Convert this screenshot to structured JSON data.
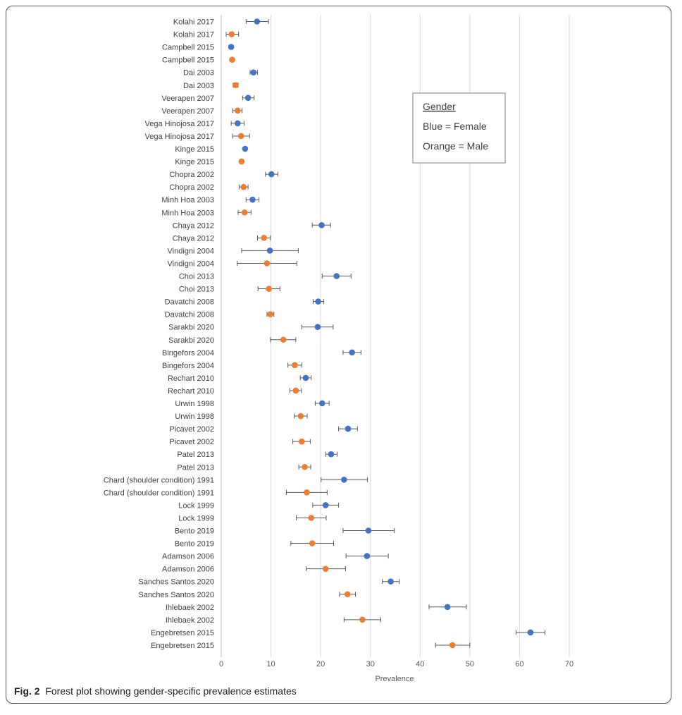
{
  "caption": {
    "label": "Fig. 2",
    "text": "Forest plot showing gender-specific prevalence estimates"
  },
  "colors": {
    "female": "#4472c4",
    "male": "#ed7d31",
    "grid": "#d9d9d9",
    "whisker": "#595959"
  },
  "chart_data": {
    "type": "scatter",
    "subtype": "forest",
    "title": "",
    "xlabel": "Prevalence",
    "ylabel": "",
    "xlim": [
      0,
      70
    ],
    "xticks": [
      0,
      10,
      20,
      30,
      40,
      50,
      60,
      70
    ],
    "grid": true,
    "legend": {
      "position": "top-right",
      "title": "Gender",
      "entries": [
        "Blue = Female",
        "Orange = Male"
      ]
    },
    "series": [
      {
        "name": "Female",
        "color": "blue"
      },
      {
        "name": "Male",
        "color": "orange"
      }
    ],
    "rows": [
      {
        "label": "Kolahi 2017",
        "gender": "F",
        "est": 7.2,
        "lo": 5.0,
        "hi": 9.5
      },
      {
        "label": "Kolahi 2017",
        "gender": "M",
        "est": 2.1,
        "lo": 1.0,
        "hi": 3.5
      },
      {
        "label": "Campbell 2015",
        "gender": "F",
        "est": 2.0,
        "lo": 2.0,
        "hi": 2.0
      },
      {
        "label": "Campbell 2015",
        "gender": "M",
        "est": 2.2,
        "lo": 2.2,
        "hi": 2.2
      },
      {
        "label": "Dai 2003",
        "gender": "F",
        "est": 6.5,
        "lo": 5.8,
        "hi": 7.3
      },
      {
        "label": "Dai 2003",
        "gender": "M",
        "est": 2.9,
        "lo": 2.4,
        "hi": 3.4
      },
      {
        "label": "Veerapen 2007",
        "gender": "F",
        "est": 5.4,
        "lo": 4.3,
        "hi": 6.6
      },
      {
        "label": "Veerapen 2007",
        "gender": "M",
        "est": 3.3,
        "lo": 2.3,
        "hi": 4.2
      },
      {
        "label": "Vega Hinojosa 2017",
        "gender": "F",
        "est": 3.3,
        "lo": 2.0,
        "hi": 4.6
      },
      {
        "label": "Vega Hinojosa 2017",
        "gender": "M",
        "est": 4.0,
        "lo": 2.3,
        "hi": 5.7
      },
      {
        "label": "Kinge 2015",
        "gender": "F",
        "est": 4.8,
        "lo": 4.8,
        "hi": 4.8
      },
      {
        "label": "Kinge 2015",
        "gender": "M",
        "est": 4.1,
        "lo": 4.1,
        "hi": 4.1
      },
      {
        "label": "Chopra 2002",
        "gender": "F",
        "est": 10.1,
        "lo": 8.9,
        "hi": 11.4
      },
      {
        "label": "Chopra 2002",
        "gender": "M",
        "est": 4.5,
        "lo": 3.6,
        "hi": 5.4
      },
      {
        "label": "Minh Hoa 2003",
        "gender": "F",
        "est": 6.3,
        "lo": 5.0,
        "hi": 7.6
      },
      {
        "label": "Minh Hoa 2003",
        "gender": "M",
        "est": 4.7,
        "lo": 3.4,
        "hi": 6.0
      },
      {
        "label": "Chaya 2012",
        "gender": "F",
        "est": 20.2,
        "lo": 18.3,
        "hi": 22.0
      },
      {
        "label": "Chaya 2012",
        "gender": "M",
        "est": 8.6,
        "lo": 7.3,
        "hi": 9.9
      },
      {
        "label": "Vindigni 2004",
        "gender": "F",
        "est": 9.8,
        "lo": 4.1,
        "hi": 15.5
      },
      {
        "label": "Vindigni 2004",
        "gender": "M",
        "est": 9.2,
        "lo": 3.2,
        "hi": 15.2
      },
      {
        "label": "Choi 2013",
        "gender": "F",
        "est": 23.2,
        "lo": 20.3,
        "hi": 26.1
      },
      {
        "label": "Choi 2013",
        "gender": "M",
        "est": 9.6,
        "lo": 7.4,
        "hi": 11.8
      },
      {
        "label": "Davatchi 2008",
        "gender": "F",
        "est": 19.5,
        "lo": 18.5,
        "hi": 20.6
      },
      {
        "label": "Davatchi 2008",
        "gender": "M",
        "est": 9.9,
        "lo": 9.2,
        "hi": 10.6
      },
      {
        "label": "Sarakbi 2020",
        "gender": "F",
        "est": 19.4,
        "lo": 16.2,
        "hi": 22.5
      },
      {
        "label": "Sarakbi 2020",
        "gender": "M",
        "est": 12.5,
        "lo": 9.9,
        "hi": 15.0
      },
      {
        "label": "Bingefors 2004",
        "gender": "F",
        "est": 26.3,
        "lo": 24.5,
        "hi": 28.1
      },
      {
        "label": "Bingefors 2004",
        "gender": "M",
        "est": 14.8,
        "lo": 13.4,
        "hi": 16.2
      },
      {
        "label": "Rechart 2010",
        "gender": "F",
        "est": 17.0,
        "lo": 15.9,
        "hi": 18.1
      },
      {
        "label": "Rechart 2010",
        "gender": "M",
        "est": 15.0,
        "lo": 13.8,
        "hi": 16.1
      },
      {
        "label": "Urwin 1998",
        "gender": "F",
        "est": 20.3,
        "lo": 18.9,
        "hi": 21.7
      },
      {
        "label": "Urwin 1998",
        "gender": "M",
        "est": 16.0,
        "lo": 14.7,
        "hi": 17.3
      },
      {
        "label": "Picavet 2002",
        "gender": "F",
        "est": 25.5,
        "lo": 23.6,
        "hi": 27.4
      },
      {
        "label": "Picavet 2002",
        "gender": "M",
        "est": 16.2,
        "lo": 14.4,
        "hi": 17.9
      },
      {
        "label": "Patel 2013",
        "gender": "F",
        "est": 22.1,
        "lo": 21.0,
        "hi": 23.3
      },
      {
        "label": "Patel 2013",
        "gender": "M",
        "est": 16.8,
        "lo": 15.6,
        "hi": 18.0
      },
      {
        "label": "Chard (shoulder condition) 1991",
        "gender": "F",
        "est": 24.7,
        "lo": 20.1,
        "hi": 29.4
      },
      {
        "label": "Chard (shoulder condition) 1991",
        "gender": "M",
        "est": 17.2,
        "lo": 13.1,
        "hi": 21.3
      },
      {
        "label": "Lock 1999",
        "gender": "F",
        "est": 21.0,
        "lo": 18.4,
        "hi": 23.6
      },
      {
        "label": "Lock 1999",
        "gender": "M",
        "est": 18.1,
        "lo": 15.1,
        "hi": 21.1
      },
      {
        "label": "Bento 2019",
        "gender": "F",
        "est": 29.6,
        "lo": 24.5,
        "hi": 34.8
      },
      {
        "label": "Bento 2019",
        "gender": "M",
        "est": 18.3,
        "lo": 14.0,
        "hi": 22.6
      },
      {
        "label": "Adamson 2006",
        "gender": "F",
        "est": 29.3,
        "lo": 25.1,
        "hi": 33.6
      },
      {
        "label": "Adamson 2006",
        "gender": "M",
        "est": 21.0,
        "lo": 17.1,
        "hi": 25.0
      },
      {
        "label": "Sanches Santos 2020",
        "gender": "F",
        "est": 34.1,
        "lo": 32.4,
        "hi": 35.8
      },
      {
        "label": "Sanches Santos 2020",
        "gender": "M",
        "est": 25.4,
        "lo": 23.8,
        "hi": 27.0
      },
      {
        "label": "Ihlebaek 2002",
        "gender": "F",
        "est": 45.5,
        "lo": 41.8,
        "hi": 49.3
      },
      {
        "label": "Ihlebaek 2002",
        "gender": "M",
        "est": 28.4,
        "lo": 24.7,
        "hi": 32.1
      },
      {
        "label": "Engebretsen 2015",
        "gender": "F",
        "est": 62.2,
        "lo": 59.3,
        "hi": 65.1
      },
      {
        "label": "Engebretsen 2015",
        "gender": "M",
        "est": 46.5,
        "lo": 43.1,
        "hi": 50.0
      }
    ]
  }
}
